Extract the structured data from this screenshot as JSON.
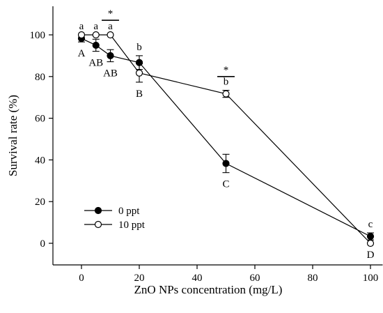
{
  "chart_data": {
    "type": "line",
    "xlabel": "ZnO NPs concentration (mg/L)",
    "ylabel": "Survival rate (%)",
    "xlim": [
      -10,
      100
    ],
    "ylim": [
      -10,
      105
    ],
    "xticks": [
      0,
      20,
      40,
      60,
      80,
      100
    ],
    "yticks": [
      0,
      20,
      40,
      60,
      80,
      100
    ],
    "grid": false,
    "legend_position": "bottom-left",
    "series": [
      {
        "name": "0 ppt",
        "marker": "filled-circle",
        "x": [
          0,
          5,
          10,
          20,
          50,
          100
        ],
        "y": [
          98.3,
          95,
          90,
          86.7,
          38.3,
          3.3
        ],
        "error": [
          1.7,
          2.9,
          2.9,
          3.3,
          4.4,
          1.7
        ]
      },
      {
        "name": "10 ppt",
        "marker": "open-circle",
        "x": [
          0,
          5,
          10,
          20,
          50,
          100
        ],
        "y": [
          100,
          100,
          100,
          81.7,
          71.7,
          0
        ],
        "error": [
          0,
          0,
          0,
          4.4,
          1.7,
          0
        ]
      }
    ],
    "annotations": [
      {
        "text": "a",
        "x": 0,
        "y": 100,
        "position": "above"
      },
      {
        "text": "a",
        "x": 5,
        "y": 100,
        "position": "above"
      },
      {
        "text": "a",
        "x": 10,
        "y": 100,
        "position": "above"
      },
      {
        "text": "b",
        "x": 20,
        "y": 90,
        "position": "above"
      },
      {
        "text": "b",
        "x": 50,
        "y": 73.4,
        "position": "above"
      },
      {
        "text": "c",
        "x": 100,
        "y": 5,
        "position": "above"
      },
      {
        "text": "A",
        "x": 0,
        "y": 96.6,
        "position": "below"
      },
      {
        "text": "AB",
        "x": 5,
        "y": 92.1,
        "position": "below"
      },
      {
        "text": "AB",
        "x": 10,
        "y": 87.1,
        "position": "below"
      },
      {
        "text": "B",
        "x": 20,
        "y": 77.3,
        "position": "below"
      },
      {
        "text": "C",
        "x": 50,
        "y": 33.9,
        "position": "below"
      },
      {
        "text": "D",
        "x": 100,
        "y": 0,
        "position": "below"
      }
    ],
    "significance": [
      {
        "text": "*",
        "x1": 7,
        "x2": 13,
        "y": 107
      },
      {
        "text": "*",
        "x1": 47,
        "x2": 53,
        "y": 80
      }
    ]
  }
}
